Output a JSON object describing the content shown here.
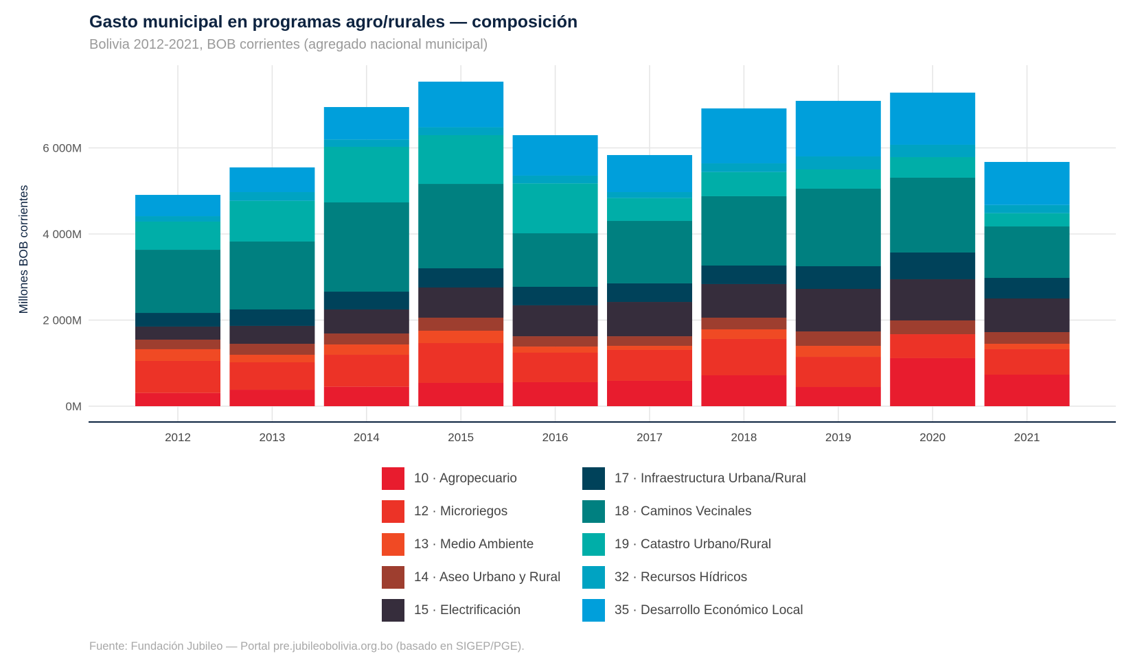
{
  "title": "Gasto municipal en programas agro/rurales — composición",
  "subtitle": "Bolivia 2012-2021, BOB corrientes (agregado nacional municipal)",
  "caption": "Fuente: Fundación Jubileo — Portal pre.jubileobolivia.org.bo (basado en SIGEP/PGE).",
  "chart_data": {
    "type": "bar",
    "stacked": true,
    "title": "Gasto municipal en programas agro/rurales — composición",
    "subtitle": "Bolivia 2012-2021, BOB corrientes (agregado nacional municipal)",
    "xlabel": "",
    "ylabel": "Millones BOB corrientes",
    "ylim": [
      0,
      7800
    ],
    "yticks": [
      0,
      2000,
      4000,
      6000
    ],
    "ytick_labels": [
      "0M",
      "2 000M",
      "4 000M",
      "6 000M"
    ],
    "grid": true,
    "legend_position": "bottom",
    "categories": [
      "2012",
      "2013",
      "2014",
      "2015",
      "2016",
      "2017",
      "2018",
      "2019",
      "2020",
      "2021"
    ],
    "series": [
      {
        "name": "10 · Agropecuario",
        "color": "#e81c2e",
        "values": [
          307,
          382,
          451,
          542,
          558,
          590,
          717,
          446,
          1116,
          733
        ]
      },
      {
        "name": "12 · Microriegos",
        "color": "#ec3327",
        "values": [
          745,
          638,
          744,
          924,
          685,
          717,
          845,
          701,
          557,
          590
        ]
      },
      {
        "name": "13 · Medio Ambiente",
        "color": "#f04a24",
        "values": [
          271,
          175,
          239,
          287,
          143,
          95,
          223,
          255,
          0,
          127
        ]
      },
      {
        "name": "14 · Aseo Urbano y Rural",
        "color": "#9e3e2f",
        "values": [
          223,
          255,
          255,
          303,
          239,
          223,
          271,
          335,
          319,
          271
        ]
      },
      {
        "name": "15 · Electrificación",
        "color": "#362d3c",
        "values": [
          303,
          415,
          558,
          701,
          718,
          797,
          781,
          988,
          956,
          781
        ]
      },
      {
        "name": "17 · Infraestructura Urbana/Rural",
        "color": "#00425a",
        "values": [
          318,
          382,
          414,
          446,
          430,
          431,
          430,
          526,
          622,
          478
        ]
      },
      {
        "name": "18 · Caminos Vecinales",
        "color": "#008080",
        "values": [
          1466,
          1578,
          2072,
          1960,
          1243,
          1450,
          1610,
          1801,
          1737,
          1195
        ]
      },
      {
        "name": "19 · Catastro Urbano/Rural",
        "color": "#00aea8",
        "values": [
          654,
          945,
          1291,
          1132,
          1158,
          531,
          562,
          446,
          478,
          308
        ]
      },
      {
        "name": "32 · Recursos Hídricos",
        "color": "#00a3c2",
        "values": [
          127,
          202,
          170,
          184,
          181,
          138,
          202,
          303,
          287,
          191
        ]
      },
      {
        "name": "35 · Desarrollo Económico Local",
        "color": "#009fdb",
        "values": [
          494,
          574,
          754,
          1059,
          940,
          861,
          1275,
          1291,
          1211,
          999
        ]
      }
    ]
  }
}
